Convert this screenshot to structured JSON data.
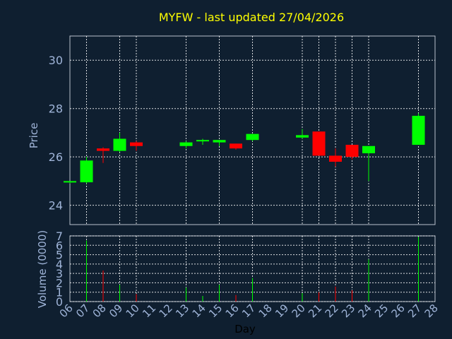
{
  "chart_data": {
    "type": "candlestick",
    "title": "MYFW - last updated 27/04/2026",
    "xlabel": "Day",
    "ylabel": "Price",
    "volume_label": "Volume (0000)",
    "price_ylim": [
      23.2,
      31.0
    ],
    "price_ticks": [
      "24",
      "26",
      "28",
      "30"
    ],
    "volume_ylim": [
      0,
      7
    ],
    "volume_ticks": [
      "0",
      "1",
      "2",
      "3",
      "4",
      "5",
      "6",
      "7"
    ],
    "x_ticks": [
      "06",
      "07",
      "08",
      "09",
      "10",
      "11",
      "12",
      "13",
      "14",
      "15",
      "16",
      "17",
      "18",
      "19",
      "20",
      "21",
      "22",
      "23",
      "24",
      "25",
      "26",
      "27",
      "28"
    ],
    "grid": true,
    "colors": {
      "up": "#00ff00",
      "down": "#ff0000",
      "background": "#0f1f30",
      "title": "#ffff00",
      "axis_text": "#9fb4d8"
    },
    "candles": [
      {
        "day": "06",
        "open": 24.95,
        "high": 25.0,
        "low": 24.9,
        "close": 25.0,
        "volume": 0
      },
      {
        "day": "07",
        "open": 24.95,
        "high": 26.0,
        "low": 24.9,
        "close": 25.85,
        "volume": 6.5
      },
      {
        "day": "08",
        "open": 26.35,
        "high": 26.4,
        "low": 25.75,
        "close": 26.25,
        "volume": 3.3
      },
      {
        "day": "09",
        "open": 26.25,
        "high": 27.0,
        "low": 26.2,
        "close": 26.75,
        "volume": 1.8
      },
      {
        "day": "10",
        "open": 26.6,
        "high": 26.65,
        "low": 26.25,
        "close": 26.45,
        "volume": 0.8
      },
      {
        "day": "13",
        "open": 26.45,
        "high": 26.65,
        "low": 26.35,
        "close": 26.6,
        "volume": 1.5
      },
      {
        "day": "14",
        "open": 26.65,
        "high": 26.75,
        "low": 26.5,
        "close": 26.7,
        "volume": 0.6
      },
      {
        "day": "15",
        "open": 26.6,
        "high": 26.7,
        "low": 26.45,
        "close": 26.7,
        "volume": 1.8
      },
      {
        "day": "16",
        "open": 26.55,
        "high": 26.55,
        "low": 26.3,
        "close": 26.35,
        "volume": 0.7
      },
      {
        "day": "17",
        "open": 26.7,
        "high": 26.95,
        "low": 26.65,
        "close": 26.95,
        "volume": 2.5
      },
      {
        "day": "20",
        "open": 26.8,
        "high": 27.15,
        "low": 26.75,
        "close": 26.9,
        "volume": 0.9
      },
      {
        "day": "21",
        "open": 27.05,
        "high": 27.05,
        "low": 26.05,
        "close": 26.05,
        "volume": 1.0
      },
      {
        "day": "22",
        "open": 26.05,
        "high": 26.35,
        "low": 25.6,
        "close": 25.8,
        "volume": 1.6
      },
      {
        "day": "23",
        "open": 26.5,
        "high": 26.5,
        "low": 25.9,
        "close": 26.0,
        "volume": 1.2
      },
      {
        "day": "24",
        "open": 26.15,
        "high": 26.45,
        "low": 25.0,
        "close": 26.45,
        "volume": 4.5
      },
      {
        "day": "27",
        "open": 26.5,
        "high": 27.8,
        "low": 26.5,
        "close": 27.7,
        "volume": 6.9
      }
    ]
  }
}
